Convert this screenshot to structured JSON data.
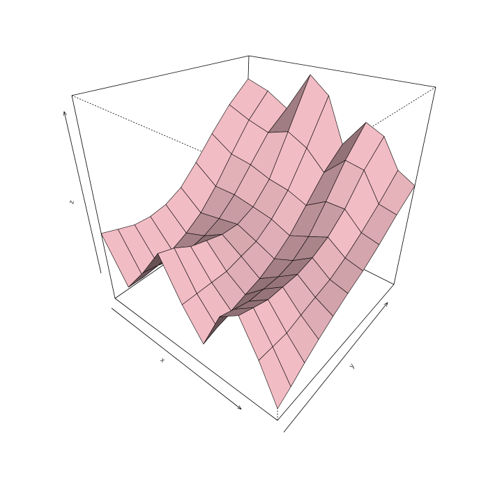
{
  "chart_data": {
    "type": "surface",
    "xlabel": "x",
    "ylabel": "y",
    "zlabel": "z",
    "color": "#e6b3bb",
    "zlim": [
      0,
      1
    ],
    "z": [
      [
        0.32,
        0.3,
        0.28,
        0.28,
        0.3,
        0.35,
        0.45,
        0.58,
        0.72,
        0.85
      ],
      [
        0.12,
        0.12,
        0.14,
        0.16,
        0.2,
        0.26,
        0.36,
        0.5,
        0.66,
        0.8
      ],
      [
        0.25,
        0.24,
        0.22,
        0.22,
        0.24,
        0.28,
        0.36,
        0.48,
        0.62,
        0.72
      ],
      [
        0.4,
        0.38,
        0.34,
        0.32,
        0.3,
        0.3,
        0.34,
        0.44,
        0.66,
        0.95
      ],
      [
        0.22,
        0.22,
        0.22,
        0.22,
        0.24,
        0.26,
        0.32,
        0.42,
        0.6,
        0.85
      ],
      [
        0.1,
        0.12,
        0.14,
        0.16,
        0.18,
        0.22,
        0.28,
        0.38,
        0.5,
        0.6
      ],
      [
        0.28,
        0.26,
        0.24,
        0.24,
        0.24,
        0.26,
        0.32,
        0.44,
        0.6,
        0.75
      ],
      [
        0.34,
        0.32,
        0.3,
        0.3,
        0.3,
        0.32,
        0.36,
        0.44,
        0.58,
        0.7
      ],
      [
        0.2,
        0.2,
        0.2,
        0.22,
        0.24,
        0.26,
        0.3,
        0.36,
        0.44,
        0.55
      ],
      [
        0.05,
        0.08,
        0.12,
        0.16,
        0.2,
        0.24,
        0.28,
        0.34,
        0.42,
        0.5
      ]
    ]
  }
}
